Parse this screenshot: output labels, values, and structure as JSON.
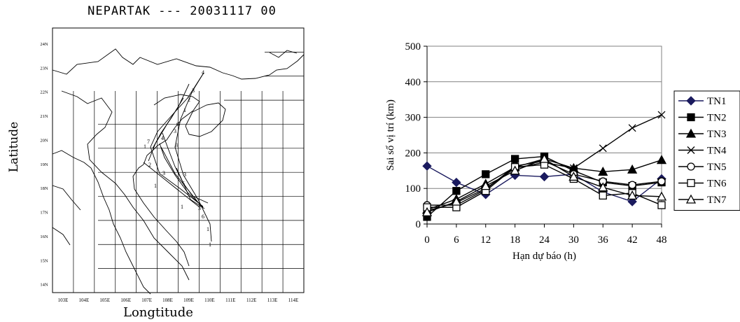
{
  "map": {
    "title": "NEPARTAK --- 20031117 00",
    "xlabel": "Longtitude",
    "ylabel": "Latitude",
    "lon_ticks": [
      "103E",
      "104E",
      "105E",
      "106E",
      "107E",
      "108E",
      "109E",
      "110E",
      "111E",
      "112E",
      "113E",
      "114E"
    ],
    "lat_ticks": [
      "14N",
      "15N",
      "16N",
      "17N",
      "18N",
      "19N",
      "20N",
      "21N",
      "22N",
      "23N",
      "24N"
    ]
  },
  "chart_data": {
    "type": "line",
    "xlabel": "Hạn dự báo (h)",
    "ylabel": "Sai số vị trí (km)",
    "x": [
      0,
      6,
      12,
      18,
      24,
      30,
      36,
      42,
      48
    ],
    "xlim": [
      0,
      48
    ],
    "ylim": [
      0,
      500
    ],
    "yticks": [
      0,
      100,
      200,
      300,
      400,
      500
    ],
    "grid": "horizontal",
    "legend_position": "right",
    "series": [
      {
        "name": "TN1",
        "marker": "diamond-filled",
        "values": [
          163,
          117,
          83,
          137,
          133,
          140,
          90,
          63,
          127
        ]
      },
      {
        "name": "TN2",
        "marker": "square-filled",
        "values": [
          20,
          93,
          140,
          183,
          190,
          150,
          117,
          107,
          117
        ]
      },
      {
        "name": "TN3",
        "marker": "triangle-filled",
        "values": [
          40,
          70,
          113,
          160,
          183,
          157,
          147,
          153,
          180
        ]
      },
      {
        "name": "TN4",
        "marker": "x",
        "values": [
          37,
          60,
          100,
          157,
          173,
          157,
          213,
          270,
          307
        ]
      },
      {
        "name": "TN5",
        "marker": "circle-open",
        "values": [
          53,
          53,
          97,
          163,
          177,
          140,
          120,
          110,
          120
        ]
      },
      {
        "name": "TN6",
        "marker": "square-open",
        "values": [
          47,
          47,
          93,
          160,
          167,
          127,
          80,
          87,
          53
        ]
      },
      {
        "name": "TN7",
        "marker": "triangle-open",
        "values": [
          33,
          63,
          107,
          150,
          183,
          133,
          103,
          80,
          77
        ]
      }
    ]
  }
}
